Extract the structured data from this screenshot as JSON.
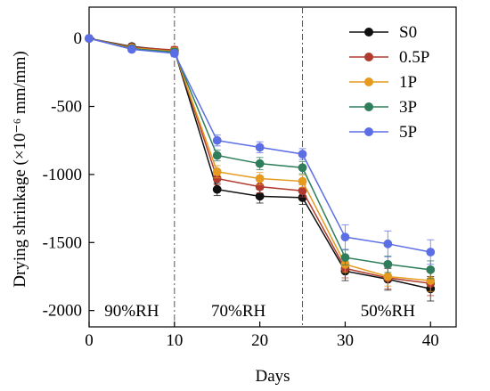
{
  "chart_data": {
    "type": "line",
    "xlabel": "Days",
    "ylabel": "Drying shrinkage (×10⁻⁶ mm/mm)",
    "xlim": [
      0,
      43
    ],
    "ylim": [
      -2120,
      230
    ],
    "x_ticks": [
      0,
      10,
      20,
      30,
      40
    ],
    "y_ticks": [
      0,
      -500,
      -1000,
      -1500,
      -2000
    ],
    "x": [
      0,
      5,
      10,
      15,
      20,
      25,
      30,
      35,
      40
    ],
    "series": [
      {
        "name": "S0",
        "color": "#111111",
        "values": [
          0,
          -60,
          -90,
          -1110,
          -1160,
          -1170,
          -1710,
          -1770,
          -1840
        ],
        "errors": [
          0,
          20,
          25,
          45,
          50,
          50,
          70,
          80,
          90
        ]
      },
      {
        "name": "0.5P",
        "color": "#b03a2e",
        "values": [
          0,
          -65,
          -85,
          -1030,
          -1090,
          -1120,
          -1690,
          -1760,
          -1800
        ],
        "errors": [
          0,
          20,
          25,
          45,
          45,
          45,
          70,
          80,
          90
        ]
      },
      {
        "name": "1P",
        "color": "#e69a1e",
        "values": [
          0,
          -70,
          -95,
          -980,
          -1030,
          -1050,
          -1660,
          -1750,
          -1780
        ],
        "errors": [
          0,
          20,
          25,
          45,
          45,
          45,
          60,
          70,
          80
        ]
      },
      {
        "name": "3P",
        "color": "#2e7d5b",
        "values": [
          0,
          -75,
          -100,
          -860,
          -920,
          -950,
          -1610,
          -1660,
          -1700
        ],
        "errors": [
          0,
          20,
          25,
          40,
          45,
          45,
          55,
          60,
          65
        ]
      },
      {
        "name": "5P",
        "color": "#5b6ee6",
        "values": [
          0,
          -80,
          -110,
          -750,
          -800,
          -850,
          -1460,
          -1510,
          -1570
        ],
        "errors": [
          0,
          20,
          25,
          40,
          40,
          40,
          90,
          95,
          90
        ]
      }
    ],
    "dividers": [
      10,
      25
    ],
    "regions": [
      {
        "label": "90%RH",
        "x": 5
      },
      {
        "label": "70%RH",
        "x": 17.5
      },
      {
        "label": "50%RH",
        "x": 35
      }
    ],
    "legend_position": "top-right",
    "grid": false
  }
}
